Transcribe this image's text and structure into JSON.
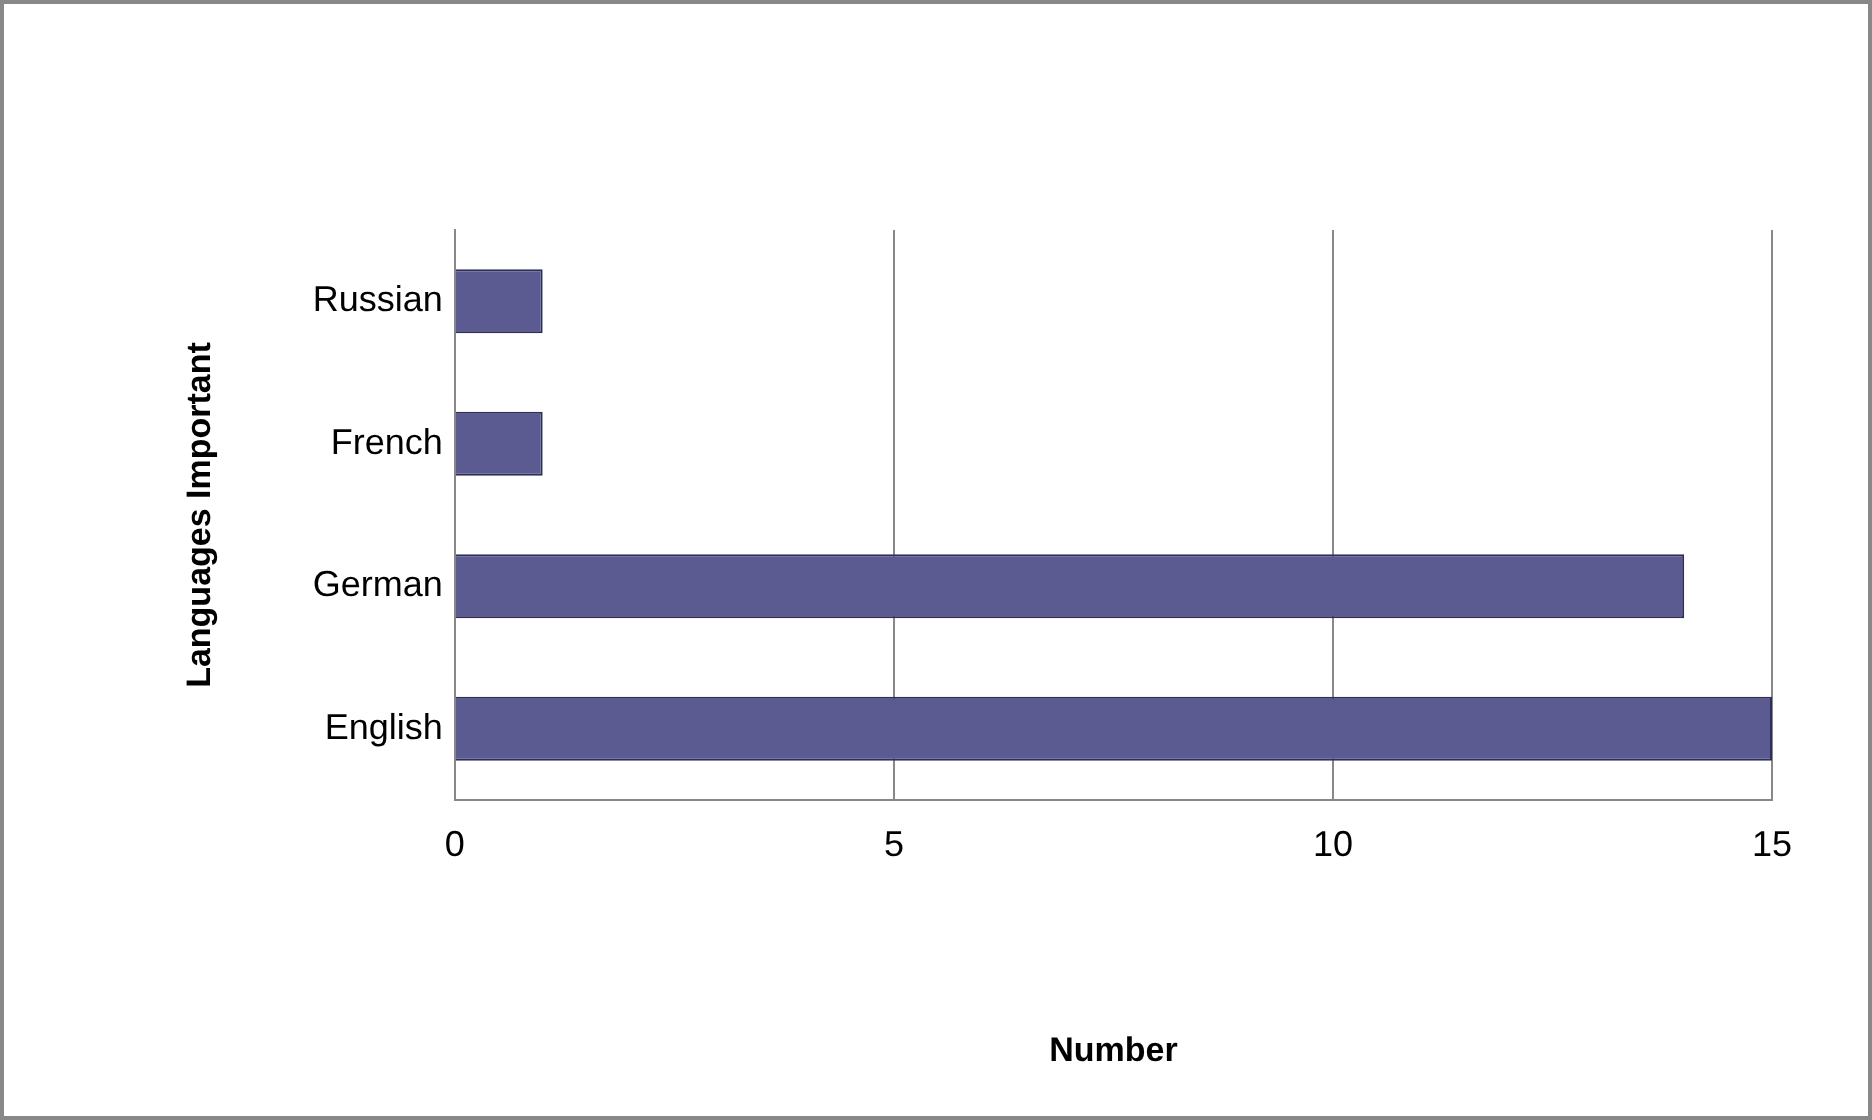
{
  "chart_data": {
    "type": "bar",
    "orientation": "horizontal",
    "categories": [
      "Russian",
      "French",
      "German",
      "English"
    ],
    "values": [
      1,
      1,
      14,
      15
    ],
    "color": "#5b5b91",
    "xlabel": "Number",
    "ylabel": "Languages Important",
    "xlim": [
      0,
      15
    ],
    "xticks": [
      0,
      5,
      10,
      15
    ],
    "grid": "x",
    "legend": false
  }
}
